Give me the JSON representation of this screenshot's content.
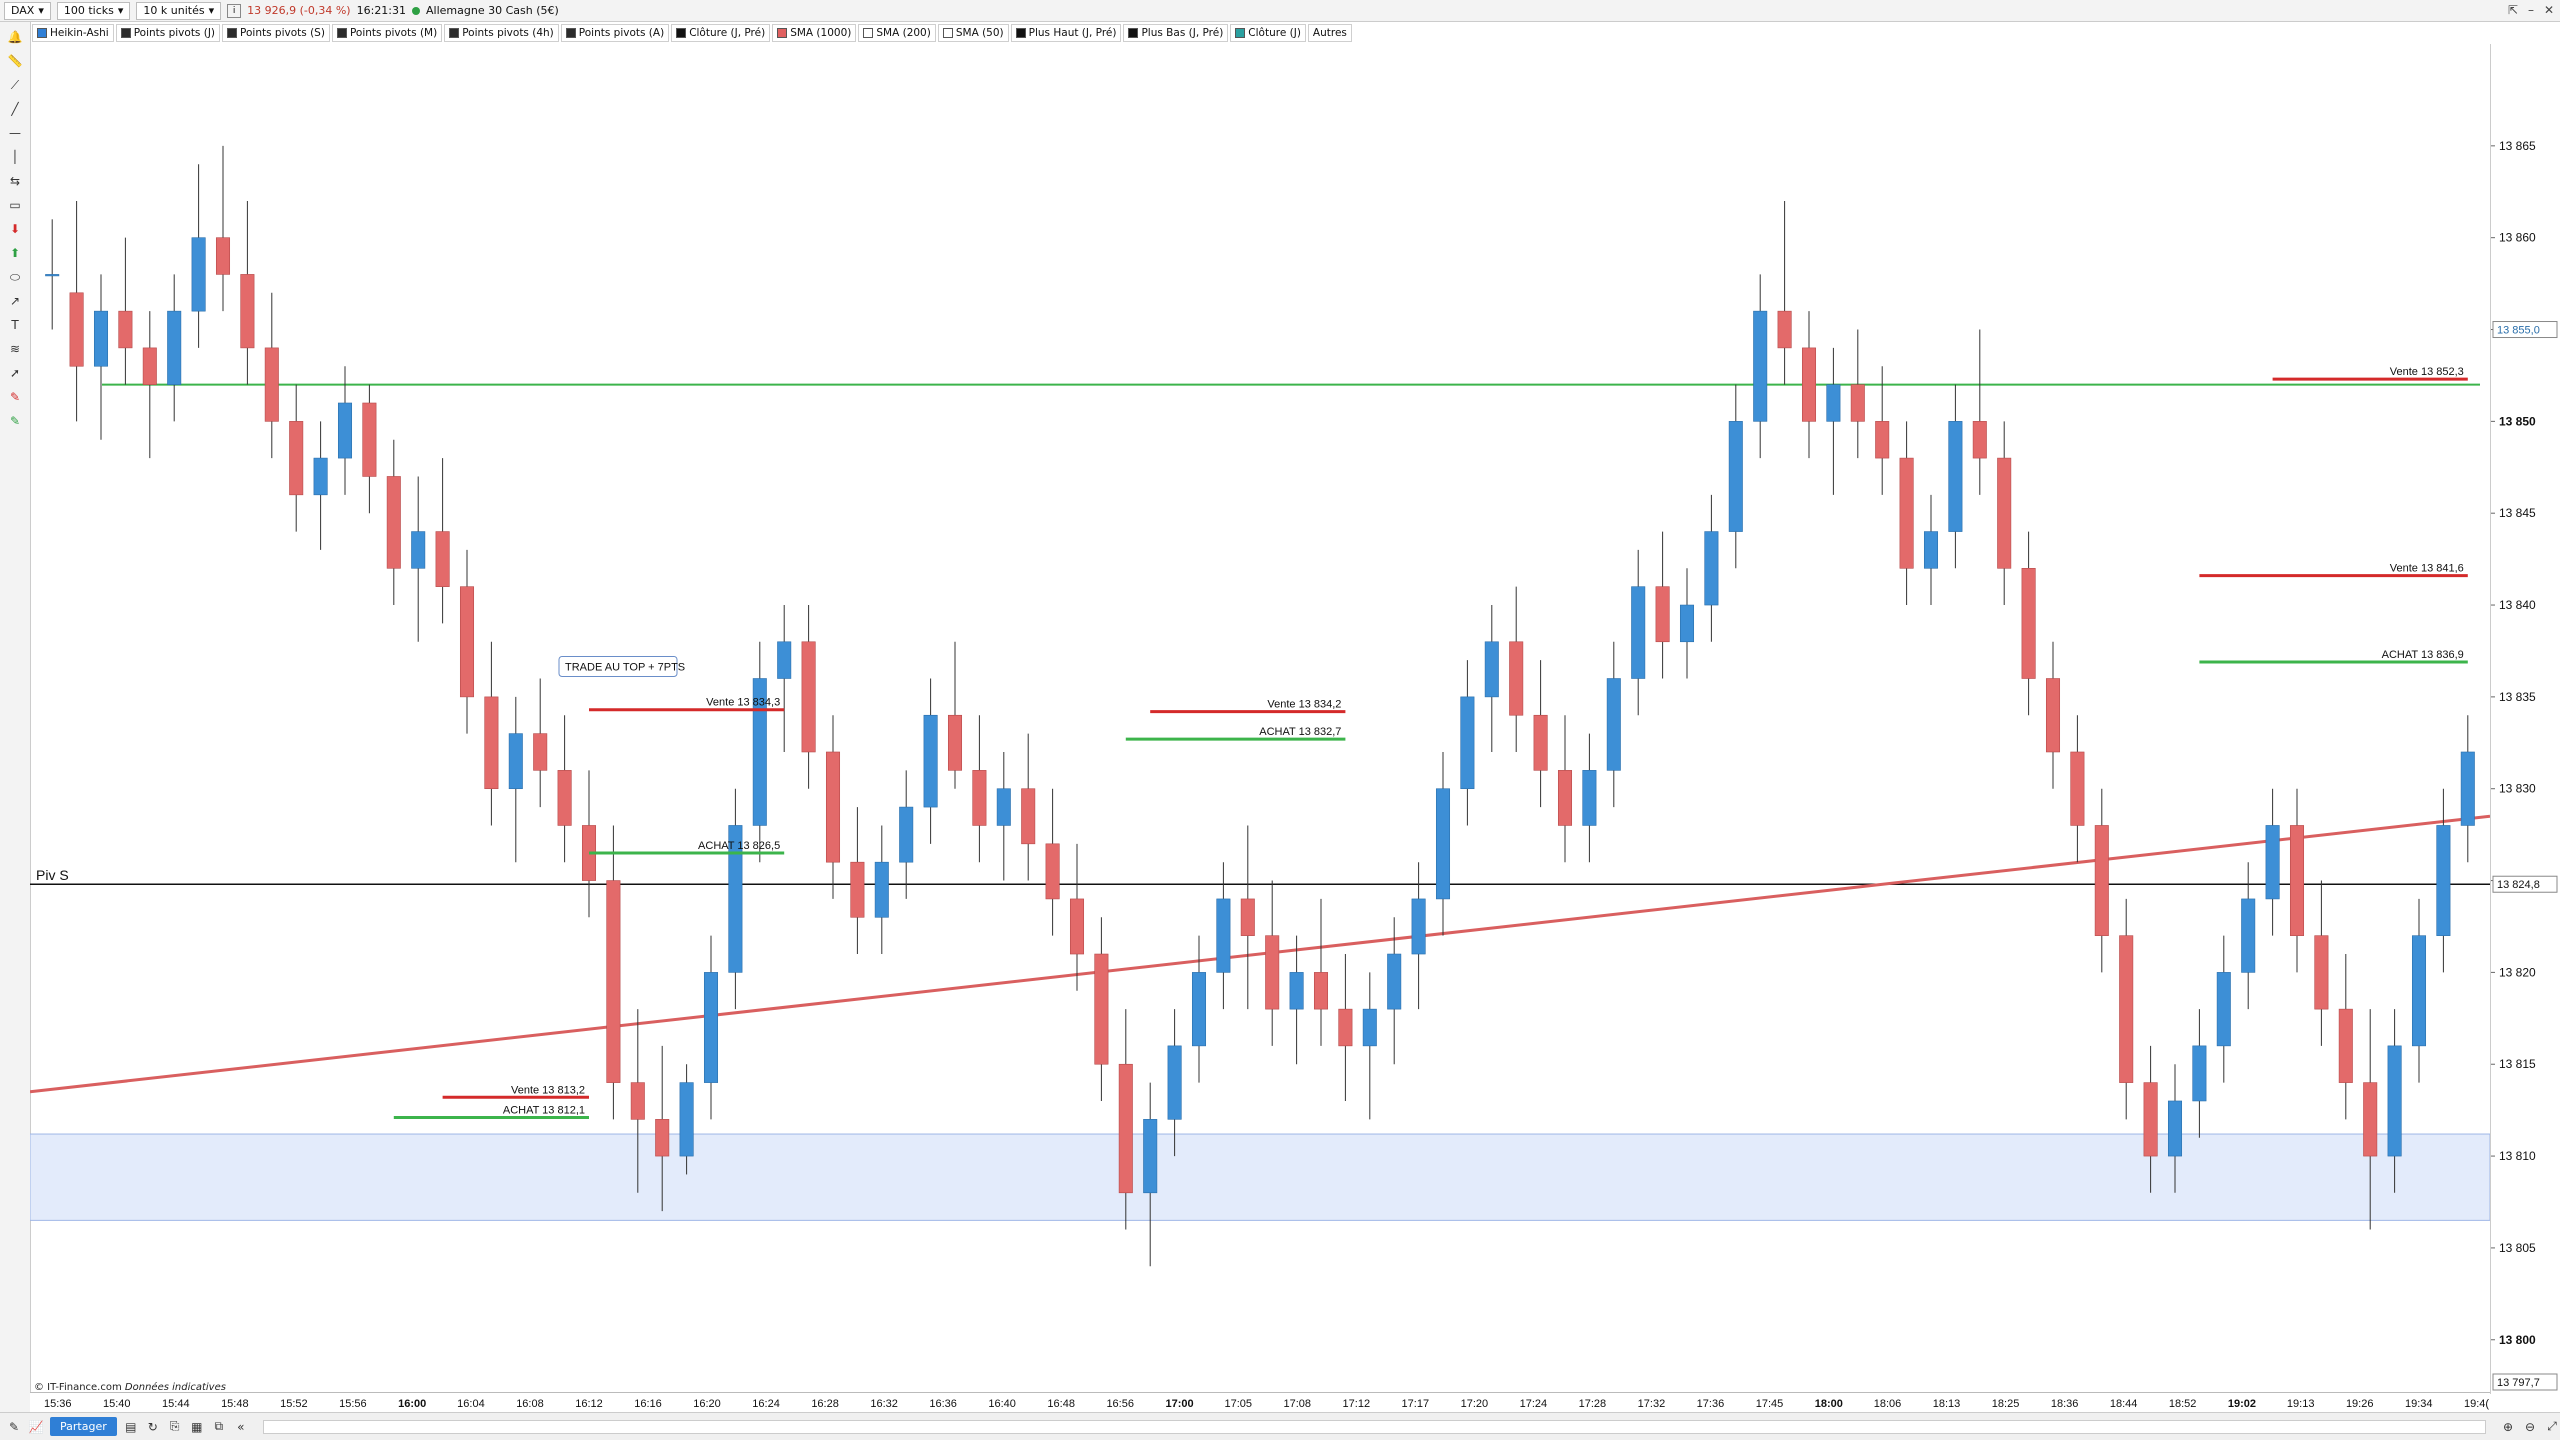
{
  "toolbar": {
    "symbol": "DAX",
    "interval": "100 ticks",
    "units": "10 k unités",
    "info_icon": "info-icon",
    "price_info": "13 926,9 (-0,34 %)",
    "time": "16:21:31",
    "market": "Allemagne 30 Cash (5€)"
  },
  "indicators": [
    {
      "label": "Heikin-Ashi",
      "color": "#2f7fd6"
    },
    {
      "label": "Points pivots (J)",
      "color": "#2b2b2b"
    },
    {
      "label": "Points pivots (S)",
      "color": "#2b2b2b"
    },
    {
      "label": "Points pivots (M)",
      "color": "#2b2b2b"
    },
    {
      "label": "Points pivots (4h)",
      "color": "#2b2b2b"
    },
    {
      "label": "Points pivots (A)",
      "color": "#2b2b2b"
    },
    {
      "label": "Clôture (J, Pré)",
      "color": "#111111"
    },
    {
      "label": "SMA (1000)",
      "color": "#e06060"
    },
    {
      "label": "SMA (200)",
      "color": "#ffffff"
    },
    {
      "label": "SMA (50)",
      "color": "#ffffff"
    },
    {
      "label": "Plus Haut (J, Pré)",
      "color": "#111111"
    },
    {
      "label": "Plus Bas (J, Pré)",
      "color": "#111111"
    },
    {
      "label": "Clôture (J)",
      "color": "#2aa0a0"
    },
    {
      "label": "Autres",
      "color": ""
    }
  ],
  "colors": {
    "bull": "#3d8fd6",
    "bear": "#e36a6a",
    "sma": "#d95f5f",
    "buy_line": "#3cb44b",
    "sell_line": "#d42a2a",
    "zone": "#e3ebfb",
    "zone_border": "#9fb7e6"
  },
  "price_axis": {
    "min": 13797.7,
    "max": 13870,
    "ticks": [
      "13 865",
      "13 860",
      "13 855",
      "13 850",
      "13 845",
      "13 840",
      "13 835",
      "13 830",
      "13 825",
      "13 820",
      "13 815",
      "13 810",
      "13 805",
      "13 800"
    ],
    "tick_values": [
      13865,
      13860,
      13855,
      13850,
      13845,
      13840,
      13835,
      13830,
      13825,
      13820,
      13815,
      13810,
      13805,
      13800
    ],
    "bold_ticks": [
      "13 850",
      "13 800"
    ],
    "current_price_label": "13 855,0",
    "current_price": 13855.0,
    "pivot_price_label": "13 824,8",
    "pivot_price": 13824.8,
    "bottom_price_label": "13 797,7"
  },
  "time_axis": [
    {
      "label": "15:36",
      "bold": false
    },
    {
      "label": "15:40",
      "bold": false
    },
    {
      "label": "15:44",
      "bold": false
    },
    {
      "label": "15:48",
      "bold": false
    },
    {
      "label": "15:52",
      "bold": false
    },
    {
      "label": "15:56",
      "bold": false
    },
    {
      "label": "16:00",
      "bold": true
    },
    {
      "label": "16:04",
      "bold": false
    },
    {
      "label": "16:08",
      "bold": false
    },
    {
      "label": "16:12",
      "bold": false
    },
    {
      "label": "16:16",
      "bold": false
    },
    {
      "label": "16:20",
      "bold": false
    },
    {
      "label": "16:24",
      "bold": false
    },
    {
      "label": "16:28",
      "bold": false
    },
    {
      "label": "16:32",
      "bold": false
    },
    {
      "label": "16:36",
      "bold": false
    },
    {
      "label": "16:40",
      "bold": false
    },
    {
      "label": "16:48",
      "bold": false
    },
    {
      "label": "16:56",
      "bold": false
    },
    {
      "label": "17:00",
      "bold": true
    },
    {
      "label": "17:05",
      "bold": false
    },
    {
      "label": "17:08",
      "bold": false
    },
    {
      "label": "17:12",
      "bold": false
    },
    {
      "label": "17:17",
      "bold": false
    },
    {
      "label": "17:20",
      "bold": false
    },
    {
      "label": "17:24",
      "bold": false
    },
    {
      "label": "17:28",
      "bold": false
    },
    {
      "label": "17:32",
      "bold": false
    },
    {
      "label": "17:36",
      "bold": false
    },
    {
      "label": "17:45",
      "bold": false
    },
    {
      "label": "18:00",
      "bold": true
    },
    {
      "label": "18:06",
      "bold": false
    },
    {
      "label": "18:13",
      "bold": false
    },
    {
      "label": "18:25",
      "bold": false
    },
    {
      "label": "18:36",
      "bold": false
    },
    {
      "label": "18:44",
      "bold": false
    },
    {
      "label": "18:52",
      "bold": false
    },
    {
      "label": "19:02",
      "bold": true
    },
    {
      "label": "19:13",
      "bold": false
    },
    {
      "label": "19:26",
      "bold": false
    },
    {
      "label": "19:34",
      "bold": false
    },
    {
      "label": "19:4(",
      "bold": false
    }
  ],
  "chart_data": {
    "type": "candlestick",
    "style": "Heikin-Ashi",
    "instrument": "DAX",
    "bars": 100,
    "sma_1000": {
      "start": 13813.5,
      "end": 13828.5
    },
    "pivot": {
      "label": "Piv S",
      "price": 13824.8
    },
    "resistance_line": 13852.0,
    "support_zone": [
      13806.5,
      13811.2
    ],
    "orders": [
      {
        "type": "sell",
        "label": "Vente 13 834,3",
        "price": 13834.3,
        "bar_from": 46,
        "bar_to": 61
      },
      {
        "type": "buy",
        "label": "ACHAT 13 826,5",
        "price": 13826.5,
        "bar_from": 46,
        "bar_to": 61
      },
      {
        "type": "sell",
        "label": "Vente 13 813,2",
        "price": 13813.2,
        "bar_from": 33,
        "bar_to": 45
      },
      {
        "type": "buy",
        "label": "ACHAT 13 812,1",
        "price": 13812.1,
        "bar_from": 29,
        "bar_to": 45
      },
      {
        "type": "sell",
        "label": "Vente 13 834,2",
        "price": 13834.2,
        "bar_from": 93,
        "bar_to": 108
      },
      {
        "type": "buy",
        "label": "ACHAT 13 832,7",
        "price": 13832.7,
        "bar_from": 91,
        "bar_to": 108
      },
      {
        "type": "sell",
        "label": "Vente 13 852,3",
        "price": 13852.3,
        "bar_from": 187,
        "bar_to": 202
      },
      {
        "type": "sell",
        "label": "Vente 13 841,6",
        "price": 13841.6,
        "bar_from": 181,
        "bar_to": 202
      },
      {
        "type": "buy",
        "label": "ACHAT 13 836,9",
        "price": 13836.9,
        "bar_from": 181,
        "bar_to": 202
      }
    ],
    "annotation": "TRADE AU TOP + 7PTS",
    "candles_ohlc": [
      [
        13858,
        13861,
        13855,
        13858
      ],
      [
        13857,
        13862,
        13850,
        13853
      ],
      [
        13853,
        13858,
        13849,
        13856
      ],
      [
        13856,
        13860,
        13852,
        13854
      ],
      [
        13854,
        13856,
        13848,
        13852
      ],
      [
        13852,
        13858,
        13850,
        13856
      ],
      [
        13856,
        13864,
        13854,
        13860
      ],
      [
        13860,
        13865,
        13856,
        13858
      ],
      [
        13858,
        13862,
        13852,
        13854
      ],
      [
        13854,
        13857,
        13848,
        13850
      ],
      [
        13850,
        13852,
        13844,
        13846
      ],
      [
        13846,
        13850,
        13843,
        13848
      ],
      [
        13848,
        13853,
        13846,
        13851
      ],
      [
        13851,
        13852,
        13845,
        13847
      ],
      [
        13847,
        13849,
        13840,
        13842
      ],
      [
        13842,
        13847,
        13838,
        13844
      ],
      [
        13844,
        13848,
        13839,
        13841
      ],
      [
        13841,
        13843,
        13833,
        13835
      ],
      [
        13835,
        13838,
        13828,
        13830
      ],
      [
        13830,
        13835,
        13826,
        13833
      ],
      [
        13833,
        13836,
        13829,
        13831
      ],
      [
        13831,
        13834,
        13826,
        13828
      ],
      [
        13828,
        13831,
        13823,
        13825
      ],
      [
        13825,
        13828,
        13812,
        13814
      ],
      [
        13814,
        13818,
        13808,
        13812
      ],
      [
        13812,
        13816,
        13807,
        13810
      ],
      [
        13810,
        13815,
        13809,
        13814
      ],
      [
        13814,
        13822,
        13812,
        13820
      ],
      [
        13820,
        13830,
        13818,
        13828
      ],
      [
        13828,
        13838,
        13826,
        13836
      ],
      [
        13836,
        13840,
        13832,
        13838
      ],
      [
        13838,
        13840,
        13830,
        13832
      ],
      [
        13832,
        13834,
        13824,
        13826
      ],
      [
        13826,
        13829,
        13821,
        13823
      ],
      [
        13823,
        13828,
        13821,
        13826
      ],
      [
        13826,
        13831,
        13824,
        13829
      ],
      [
        13829,
        13836,
        13827,
        13834
      ],
      [
        13834,
        13838,
        13830,
        13831
      ],
      [
        13831,
        13834,
        13826,
        13828
      ],
      [
        13828,
        13832,
        13825,
        13830
      ],
      [
        13830,
        13833,
        13825,
        13827
      ],
      [
        13827,
        13830,
        13822,
        13824
      ],
      [
        13824,
        13827,
        13819,
        13821
      ],
      [
        13821,
        13823,
        13813,
        13815
      ],
      [
        13815,
        13818,
        13806,
        13808
      ],
      [
        13808,
        13814,
        13804,
        13812
      ],
      [
        13812,
        13818,
        13810,
        13816
      ],
      [
        13816,
        13822,
        13814,
        13820
      ],
      [
        13820,
        13826,
        13818,
        13824
      ],
      [
        13824,
        13828,
        13818,
        13822
      ],
      [
        13822,
        13825,
        13816,
        13818
      ],
      [
        13818,
        13822,
        13815,
        13820
      ],
      [
        13820,
        13824,
        13816,
        13818
      ],
      [
        13818,
        13821,
        13813,
        13816
      ],
      [
        13816,
        13820,
        13812,
        13818
      ],
      [
        13818,
        13823,
        13815,
        13821
      ],
      [
        13821,
        13826,
        13818,
        13824
      ],
      [
        13824,
        13832,
        13822,
        13830
      ],
      [
        13830,
        13837,
        13828,
        13835
      ],
      [
        13835,
        13840,
        13832,
        13838
      ],
      [
        13838,
        13841,
        13832,
        13834
      ],
      [
        13834,
        13837,
        13829,
        13831
      ],
      [
        13831,
        13834,
        13826,
        13828
      ],
      [
        13828,
        13833,
        13826,
        13831
      ],
      [
        13831,
        13838,
        13829,
        13836
      ],
      [
        13836,
        13843,
        13834,
        13841
      ],
      [
        13841,
        13844,
        13836,
        13838
      ],
      [
        13838,
        13842,
        13836,
        13840
      ],
      [
        13840,
        13846,
        13838,
        13844
      ],
      [
        13844,
        13852,
        13842,
        13850
      ],
      [
        13850,
        13858,
        13848,
        13856
      ],
      [
        13856,
        13862,
        13852,
        13854
      ],
      [
        13854,
        13856,
        13848,
        13850
      ],
      [
        13850,
        13854,
        13846,
        13852
      ],
      [
        13852,
        13855,
        13848,
        13850
      ],
      [
        13850,
        13853,
        13846,
        13848
      ],
      [
        13848,
        13850,
        13840,
        13842
      ],
      [
        13842,
        13846,
        13840,
        13844
      ],
      [
        13844,
        13852,
        13842,
        13850
      ],
      [
        13850,
        13855,
        13846,
        13848
      ],
      [
        13848,
        13850,
        13840,
        13842
      ],
      [
        13842,
        13844,
        13834,
        13836
      ],
      [
        13836,
        13838,
        13830,
        13832
      ],
      [
        13832,
        13834,
        13826,
        13828
      ],
      [
        13828,
        13830,
        13820,
        13822
      ],
      [
        13822,
        13824,
        13812,
        13814
      ],
      [
        13814,
        13816,
        13808,
        13810
      ],
      [
        13810,
        13815,
        13808,
        13813
      ],
      [
        13813,
        13818,
        13811,
        13816
      ],
      [
        13816,
        13822,
        13814,
        13820
      ],
      [
        13820,
        13826,
        13818,
        13824
      ],
      [
        13824,
        13830,
        13822,
        13828
      ],
      [
        13828,
        13830,
        13820,
        13822
      ],
      [
        13822,
        13825,
        13816,
        13818
      ],
      [
        13818,
        13821,
        13812,
        13814
      ],
      [
        13814,
        13818,
        13806,
        13810
      ],
      [
        13810,
        13818,
        13808,
        13816
      ],
      [
        13816,
        13824,
        13814,
        13822
      ],
      [
        13822,
        13830,
        13820,
        13828
      ],
      [
        13828,
        13834,
        13826,
        13832
      ]
    ]
  },
  "footer": {
    "copyright": "© IT-Finance.com",
    "note": "Données indicatives"
  },
  "bottom": {
    "share_label": "Partager"
  }
}
